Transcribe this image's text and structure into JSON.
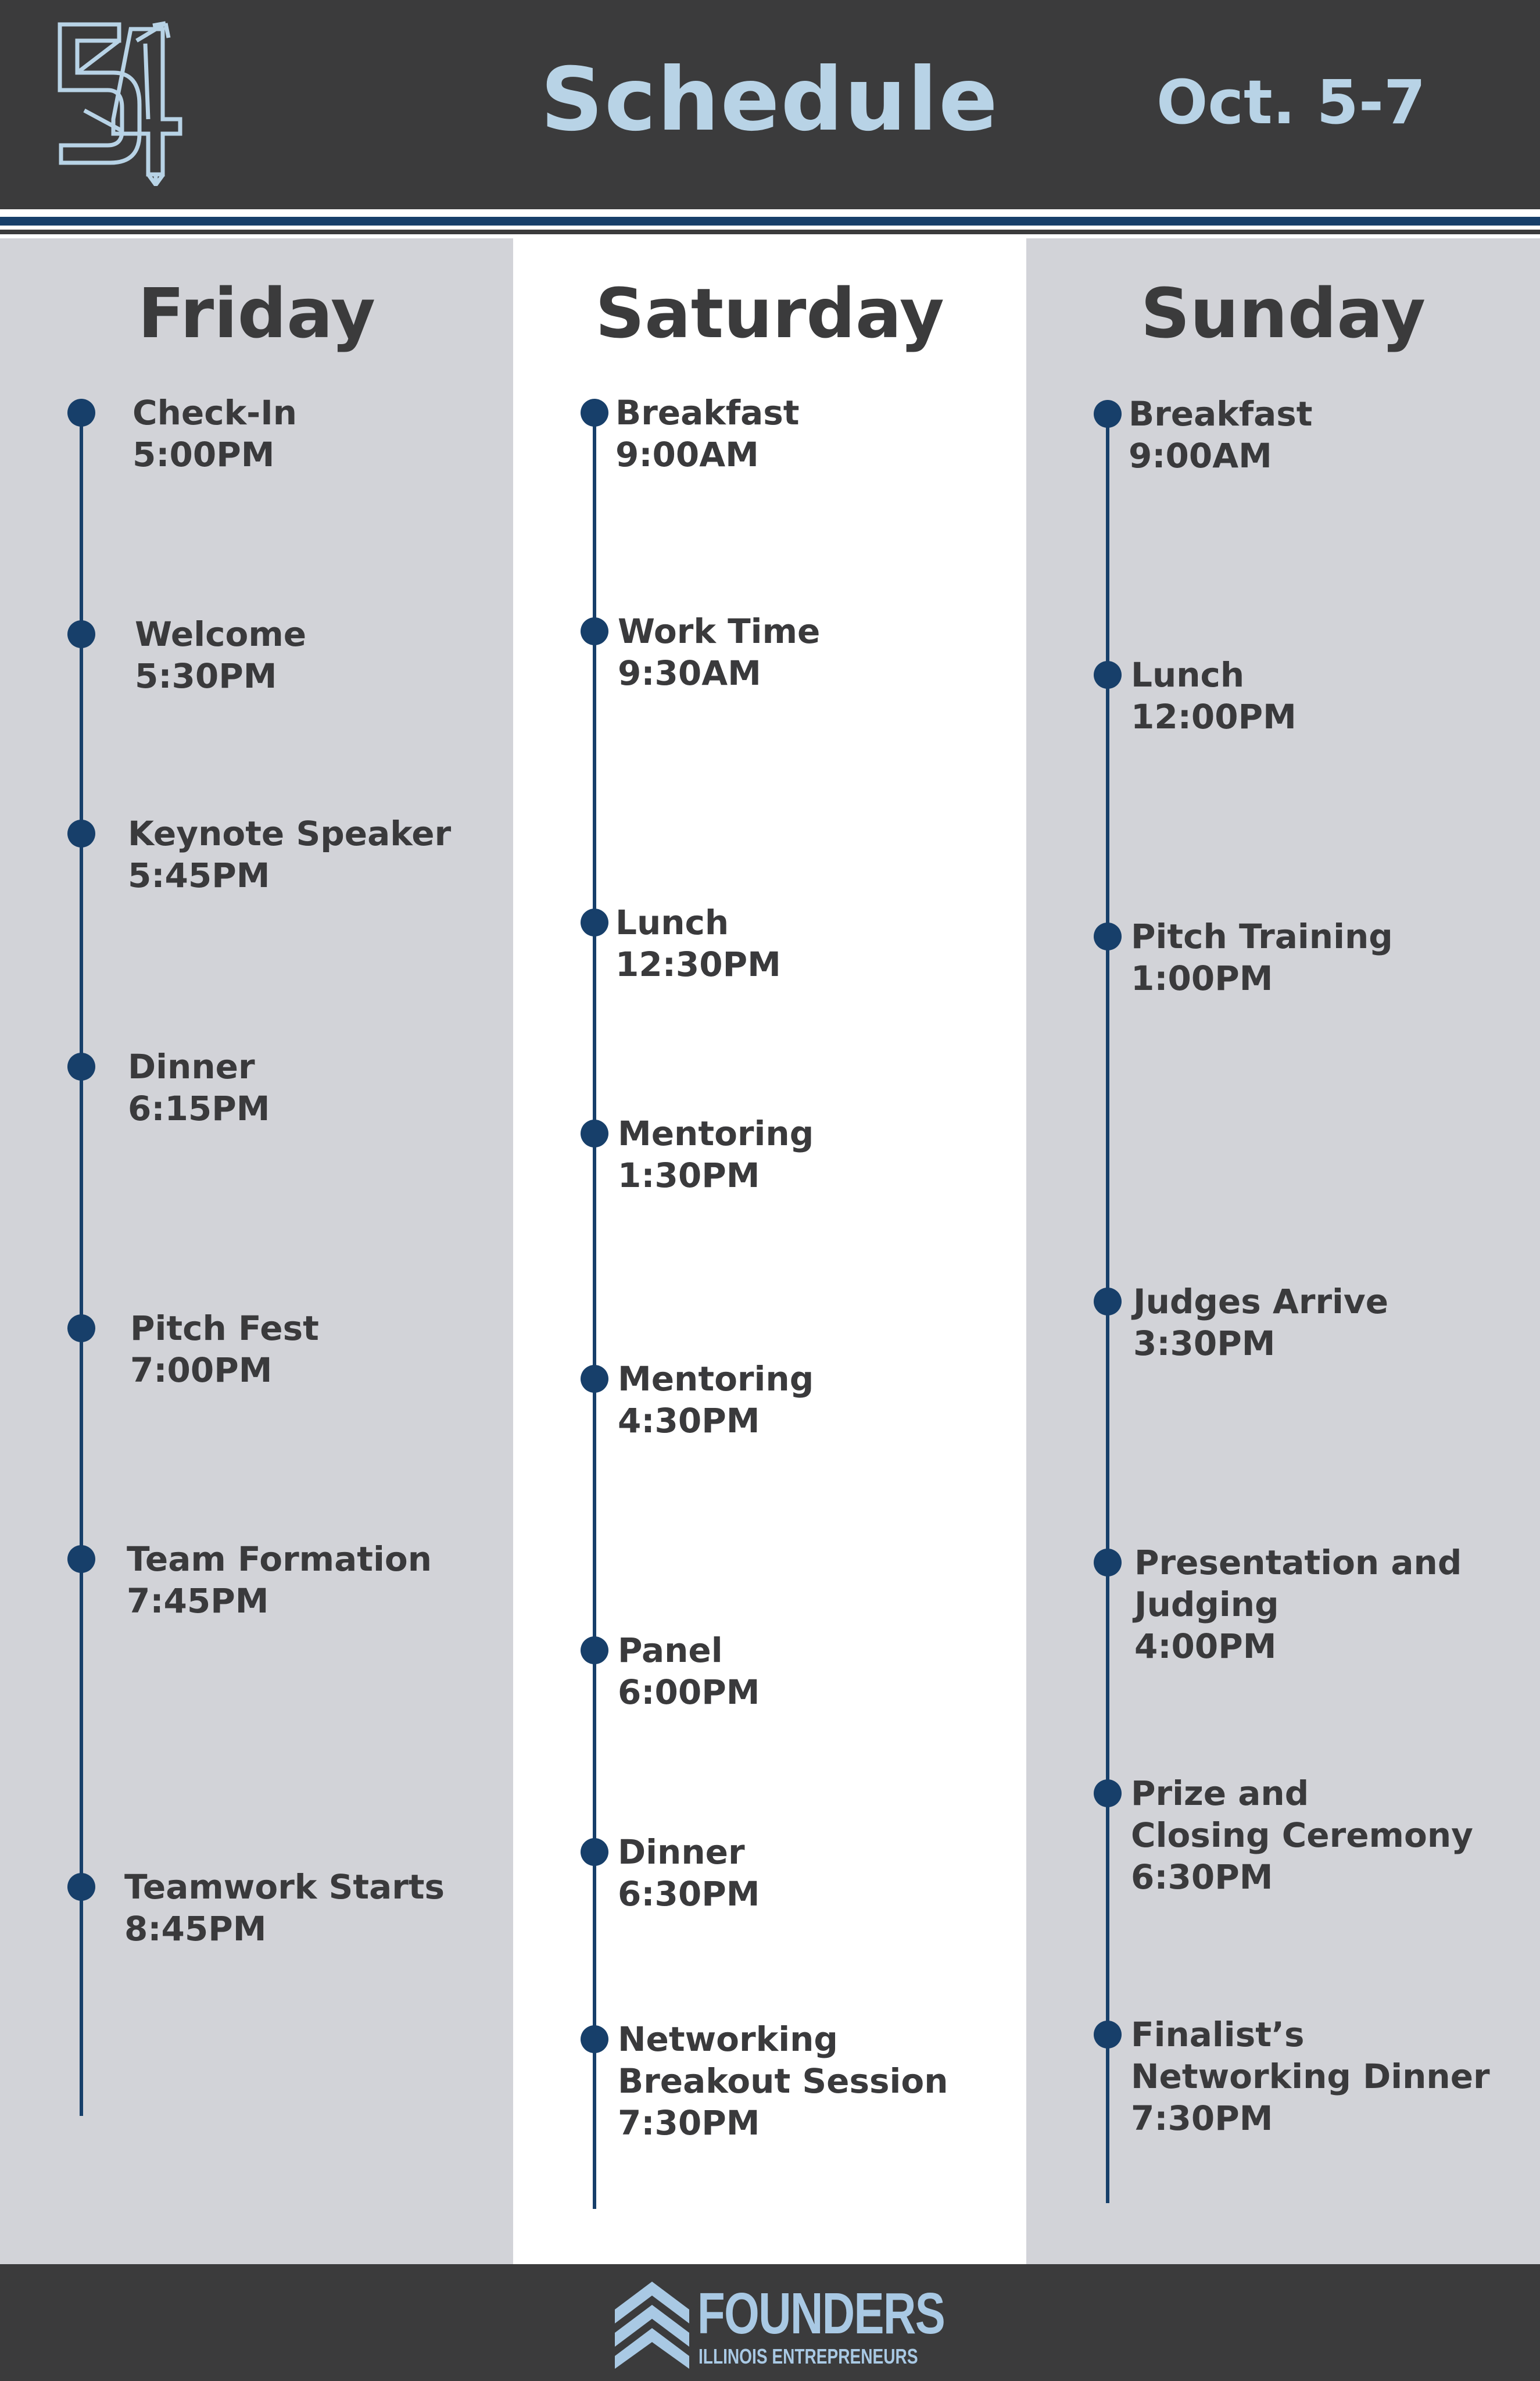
{
  "header": {
    "logo_text": "54",
    "title": "Schedule",
    "dates": "Oct. 5-7"
  },
  "days": [
    {
      "name": "Friday",
      "events": [
        {
          "name": "Check-In",
          "time": "5:00PM"
        },
        {
          "name": "Welcome",
          "time": "5:30PM"
        },
        {
          "name": "Keynote Speaker",
          "time": "5:45PM"
        },
        {
          "name": "Dinner",
          "time": "6:15PM"
        },
        {
          "name": "Pitch Fest",
          "time": "7:00PM"
        },
        {
          "name": "Team Formation",
          "time": "7:45PM"
        },
        {
          "name": "Teamwork Starts",
          "time": "8:45PM"
        }
      ]
    },
    {
      "name": "Saturday",
      "events": [
        {
          "name": "Breakfast",
          "time": "9:00AM"
        },
        {
          "name": "Work Time",
          "time": "9:30AM"
        },
        {
          "name": "Lunch",
          "time": "12:30PM"
        },
        {
          "name": "Mentoring",
          "time": "1:30PM"
        },
        {
          "name": "Mentoring",
          "time": "4:30PM"
        },
        {
          "name": "Panel",
          "time": "6:00PM"
        },
        {
          "name": "Dinner",
          "time": "6:30PM"
        },
        {
          "name": "Networking Breakout Session",
          "name_lines": [
            "Networking",
            "Breakout Session"
          ],
          "time": "7:30PM"
        }
      ]
    },
    {
      "name": "Sunday",
      "events": [
        {
          "name": "Breakfast",
          "time": "9:00AM"
        },
        {
          "name": "Lunch",
          "time": "12:00PM"
        },
        {
          "name": "Pitch Training",
          "time": "1:00PM"
        },
        {
          "name": "Judges Arrive",
          "time": "3:30PM"
        },
        {
          "name": "Presentation and Judging",
          "name_lines": [
            "Presentation and",
            "Judging"
          ],
          "time": "4:00PM"
        },
        {
          "name": "Prize and Closing Ceremony",
          "name_lines": [
            "Prize and",
            "Closing Ceremony"
          ],
          "time": "6:30PM"
        },
        {
          "name": "Finalist’s Networking Dinner",
          "name_lines": [
            "Finalist’s",
            "Networking Dinner"
          ],
          "time": "7:30PM"
        }
      ]
    }
  ],
  "footer": {
    "brand": "FOUNDERS",
    "subtitle": "ILLINOIS ENTREPRENEURS",
    "icon": "house-chevron-icon"
  },
  "colors": {
    "dark": "#3b3b3c",
    "navy": "#173f6a",
    "light_blue": "#b8d3e6",
    "panel_gray": "#d2d3d8"
  }
}
